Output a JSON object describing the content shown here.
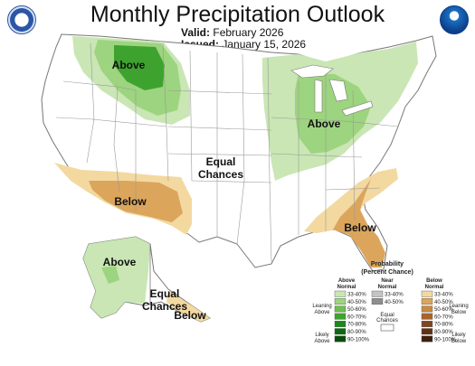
{
  "header": {
    "title": "Monthly Precipitation Outlook",
    "valid_label": "Valid:",
    "valid_value": "February 2026",
    "issued_label": "Issued:",
    "issued_value": "January 15, 2026"
  },
  "logos": {
    "left": "doc-seal-icon",
    "right": "noaa-logo-icon"
  },
  "map_labels": {
    "above_northwest": "Above",
    "above_greatlakes": "Above",
    "equal_center_1": "Equal",
    "equal_center_2": "Chances",
    "below_southwest": "Below",
    "below_southeast": "Below",
    "above_alaska": "Above",
    "equal_alaska_1": "Equal",
    "equal_alaska_2": "Chances",
    "below_alaska": "Below"
  },
  "legend": {
    "title_1": "Probability",
    "title_2": "(Percent Chance)",
    "above_header_1": "Above",
    "above_header_2": "Normal",
    "near_header_1": "Near",
    "near_header_2": "Normal",
    "below_header_1": "Below",
    "below_header_2": "Normal",
    "leaning_above_1": "Leaning",
    "leaning_above_2": "Above",
    "likely_above_1": "Likely",
    "likely_above_2": "Above",
    "leaning_below_1": "Leaning",
    "leaning_below_2": "Below",
    "likely_below_1": "Likely",
    "likely_below_2": "Below",
    "equal_1": "Equal",
    "equal_2": "Chances",
    "ranges": [
      "33-40%",
      "40-50%",
      "50-60%",
      "60-70%",
      "70-80%",
      "80-90%",
      "90-100%"
    ],
    "near_ranges": [
      "33-40%",
      "40-50%"
    ],
    "above_colors": [
      "#c9e6b4",
      "#9dd47f",
      "#6fbf4f",
      "#3ea32e",
      "#198a1b",
      "#0a6a12",
      "#064c0c"
    ],
    "near_colors": [
      "#c4c4c4",
      "#8e8e8e"
    ],
    "below_colors": [
      "#f3d9a0",
      "#dba55c",
      "#c98a3f",
      "#a7652b",
      "#80461e",
      "#5e3214",
      "#3e200c"
    ]
  },
  "colors": {
    "above_light": "#c9e6b4",
    "above_mid": "#9dd47f",
    "above_dark": "#3ea32e",
    "below_light": "#f3d9a0",
    "below_mid": "#dba55c",
    "state_line": "#888888"
  }
}
